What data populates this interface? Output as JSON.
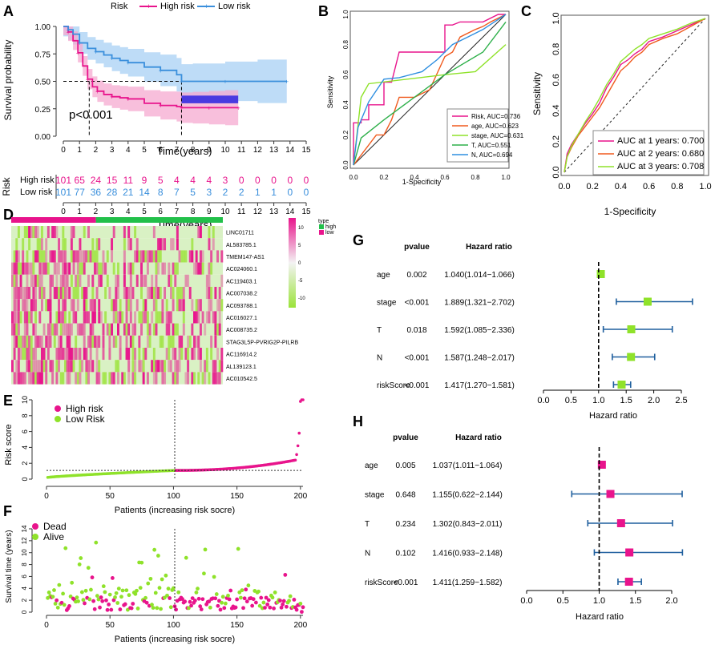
{
  "panel_labels": [
    "A",
    "B",
    "C",
    "D",
    "E",
    "F",
    "G",
    "H"
  ],
  "colors": {
    "high": "#e8148c",
    "low": "#3a8fdc",
    "high_fill": "#f6a9d0",
    "low_fill": "#a8d0f4",
    "green": "#8fe22a",
    "orange": "#f05a1e",
    "forest_bar": "#1f5f9e",
    "forest_green_box": "#8fe22a",
    "forest_pink_box": "#e8148c",
    "heat_pos": "#e8148c",
    "heat_neg": "#9be33a"
  },
  "chart_data": [
    {
      "id": "A",
      "type": "line",
      "title": "",
      "legend_title": "Risk",
      "legend": [
        "High risk",
        "Low risk"
      ],
      "xlabel": "Time(years)",
      "ylabel": "Survival probability",
      "xlim": [
        0,
        15
      ],
      "ylim": [
        0,
        1
      ],
      "xticks": [
        "0",
        "1",
        "2",
        "3",
        "4",
        "5",
        "6",
        "7",
        "8",
        "9",
        "10",
        "11",
        "12",
        "13",
        "14",
        "15"
      ],
      "yticks": [
        "0.00",
        "0.25",
        "0.50",
        "0.75",
        "1.00"
      ],
      "annotation": "p<0.001",
      "median_high": 1.6,
      "median_low": 7.3,
      "series": [
        {
          "name": "High risk",
          "x": [
            0,
            0.3,
            0.6,
            0.9,
            1.2,
            1.5,
            1.8,
            2.1,
            2.5,
            3,
            3.5,
            4,
            5,
            6,
            7,
            7.3,
            8,
            9,
            10,
            10.8
          ],
          "y": [
            1,
            0.95,
            0.87,
            0.76,
            0.64,
            0.52,
            0.45,
            0.41,
            0.38,
            0.36,
            0.35,
            0.34,
            0.3,
            0.28,
            0.27,
            0.26,
            0.26,
            0.26,
            0.26,
            0.26
          ]
        },
        {
          "name": "Low risk",
          "x": [
            0,
            0.3,
            0.6,
            1,
            1.5,
            2,
            2.5,
            3,
            3.5,
            4,
            5,
            6,
            7,
            7.3,
            8,
            10,
            12,
            13.8
          ],
          "y": [
            1,
            0.97,
            0.93,
            0.85,
            0.8,
            0.77,
            0.74,
            0.71,
            0.69,
            0.67,
            0.63,
            0.6,
            0.56,
            0.5,
            0.5,
            0.5,
            0.5,
            0.5
          ]
        }
      ],
      "risk_table": {
        "label": "Risk",
        "rows": [
          {
            "name": "High risk",
            "values": [
              "101",
              "65",
              "24",
              "15",
              "11",
              "9",
              "5",
              "4",
              "4",
              "4",
              "3",
              "0",
              "0",
              "0",
              "0",
              "0"
            ]
          },
          {
            "name": "Low risk",
            "values": [
              "101",
              "77",
              "36",
              "28",
              "21",
              "14",
              "8",
              "7",
              "5",
              "3",
              "2",
              "2",
              "1",
              "1",
              "0",
              "0"
            ]
          }
        ],
        "xticks": [
          "0",
          "1",
          "2",
          "3",
          "4",
          "5",
          "6",
          "7",
          "8",
          "9",
          "10",
          "11",
          "12",
          "13",
          "14",
          "15"
        ],
        "xlabel": "Time(years)"
      }
    },
    {
      "id": "B",
      "type": "line",
      "xlabel": "1-Specificity",
      "ylabel": "Sensitivity",
      "xlim": [
        0,
        1
      ],
      "ylim": [
        0,
        1
      ],
      "xticks": [
        "0.0",
        "0.2",
        "0.4",
        "0.6",
        "0.8",
        "1.0"
      ],
      "yticks": [
        "0.0",
        "0.2",
        "0.4",
        "0.6",
        "0.8",
        "1.0"
      ],
      "series": [
        {
          "name": "Risk, AUC=0.736",
          "color": "#e8148c",
          "x": [
            0,
            0,
            0.05,
            0.05,
            0.1,
            0.1,
            0.15,
            0.2,
            0.2,
            0.25,
            0.3,
            0.3,
            0.5,
            0.6,
            0.6,
            0.65,
            0.7,
            0.85,
            0.95,
            1
          ],
          "y": [
            0,
            0.28,
            0.28,
            0.3,
            0.3,
            0.4,
            0.4,
            0.4,
            0.55,
            0.55,
            0.75,
            0.75,
            0.75,
            0.75,
            0.93,
            0.93,
            0.95,
            0.95,
            1,
            1
          ]
        },
        {
          "name": "age, AUC=0.623",
          "color": "#f05a1e",
          "x": [
            0,
            0.15,
            0.2,
            0.25,
            0.3,
            0.4,
            0.5,
            0.6,
            0.65,
            0.7,
            0.8,
            0.85,
            0.9,
            1
          ],
          "y": [
            0,
            0.2,
            0.2,
            0.3,
            0.45,
            0.45,
            0.5,
            0.72,
            0.75,
            0.85,
            0.9,
            0.92,
            0.95,
            1
          ]
        },
        {
          "name": "stage, AUC=0.631",
          "color": "#8fe22a",
          "x": [
            0,
            0.05,
            0.1,
            0.6,
            0.8,
            1
          ],
          "y": [
            0,
            0.45,
            0.54,
            0.6,
            0.62,
            0.8
          ]
        },
        {
          "name": "T, AUC=0.551",
          "color": "#2eb04a",
          "x": [
            0,
            0.05,
            0.2,
            0.6,
            0.85,
            1
          ],
          "y": [
            0,
            0.18,
            0.3,
            0.6,
            0.75,
            0.95
          ]
        },
        {
          "name": "N, AUC=0.694",
          "color": "#2f8fe0",
          "x": [
            0,
            0.03,
            0.1,
            0.2,
            0.3,
            0.45,
            0.55,
            0.65,
            0.75,
            0.85,
            1
          ],
          "y": [
            0,
            0.25,
            0.42,
            0.57,
            0.58,
            0.62,
            0.7,
            0.8,
            0.85,
            0.9,
            1
          ]
        }
      ]
    },
    {
      "id": "C",
      "type": "line",
      "xlabel": "1-Specificity",
      "ylabel": "Sensitivity",
      "xlim": [
        0,
        1
      ],
      "ylim": [
        0,
        1
      ],
      "xticks": [
        "0.0",
        "0.2",
        "0.4",
        "0.6",
        "0.8",
        "1.0"
      ],
      "yticks": [
        "0.0",
        "0.2",
        "0.4",
        "0.6",
        "0.8",
        "1.0"
      ],
      "series": [
        {
          "name": "AUC at 1 years: 0.700",
          "color": "#e8148c",
          "x": [
            0,
            0.02,
            0.05,
            0.1,
            0.15,
            0.2,
            0.25,
            0.3,
            0.35,
            0.4,
            0.45,
            0.5,
            0.55,
            0.6,
            0.7,
            0.8,
            0.9,
            1
          ],
          "y": [
            0,
            0.12,
            0.18,
            0.25,
            0.32,
            0.38,
            0.45,
            0.55,
            0.62,
            0.7,
            0.73,
            0.77,
            0.8,
            0.85,
            0.88,
            0.92,
            0.96,
            1
          ]
        },
        {
          "name": "AUC at 2 years: 0.680",
          "color": "#f05a1e",
          "x": [
            0,
            0.02,
            0.05,
            0.1,
            0.15,
            0.2,
            0.25,
            0.3,
            0.35,
            0.4,
            0.45,
            0.5,
            0.55,
            0.6,
            0.7,
            0.8,
            0.9,
            1
          ],
          "y": [
            0,
            0.1,
            0.16,
            0.24,
            0.3,
            0.36,
            0.42,
            0.5,
            0.58,
            0.66,
            0.7,
            0.75,
            0.78,
            0.83,
            0.87,
            0.9,
            0.95,
            1
          ]
        },
        {
          "name": "AUC at 3 years: 0.708",
          "color": "#8fe22a",
          "x": [
            0,
            0.02,
            0.05,
            0.1,
            0.15,
            0.2,
            0.25,
            0.3,
            0.35,
            0.4,
            0.45,
            0.5,
            0.55,
            0.6,
            0.7,
            0.8,
            0.9,
            1
          ],
          "y": [
            0,
            0.1,
            0.17,
            0.25,
            0.33,
            0.4,
            0.48,
            0.57,
            0.64,
            0.72,
            0.76,
            0.8,
            0.83,
            0.87,
            0.9,
            0.93,
            0.97,
            1
          ]
        }
      ]
    },
    {
      "id": "D",
      "type": "heatmap",
      "genes": [
        "LINC01711",
        "AL583785.1",
        "TMEM147-AS1",
        "AC024060.1",
        "AC119403.1",
        "AC007038.2",
        "AC093788.1",
        "AC016027.1",
        "AC008735.2",
        "STAG3L5P-PVRIG2P-PILRB",
        "AC116914.2",
        "AL139123.1",
        "AC010542.5"
      ],
      "legend_title": "type",
      "legend": [
        "high",
        "low"
      ],
      "scale_ticks": [
        "10",
        "5",
        "0",
        "-5",
        "-10"
      ]
    },
    {
      "id": "E",
      "type": "scatter",
      "xlabel": "Patients (increasing risk socre)",
      "ylabel": "Risk score",
      "legend": [
        "High risk",
        "Low Risk"
      ],
      "xlim": [
        0,
        202
      ],
      "ylim": [
        0,
        10
      ],
      "xticks": [
        "0",
        "50",
        "100",
        "150",
        "200"
      ],
      "yticks": [
        "0",
        "2",
        "4",
        "6",
        "8",
        "10"
      ],
      "cutoff_x": 101,
      "cutoff_y": 1.1
    },
    {
      "id": "F",
      "type": "scatter",
      "xlabel": "Patients (increasing risk socre)",
      "ylabel": "Survival time (years)",
      "legend": [
        "Dead",
        "Alive"
      ],
      "xlim": [
        0,
        202
      ],
      "ylim": [
        0,
        14
      ],
      "xticks": [
        "0",
        "50",
        "100",
        "150",
        "200"
      ],
      "yticks": [
        "0",
        "2",
        "4",
        "6",
        "8",
        "10",
        "12",
        "14"
      ],
      "cutoff_x": 101
    },
    {
      "id": "G",
      "type": "table",
      "headers": [
        "pvalue",
        "Hazard ratio"
      ],
      "xlabel": "Hazard ratio",
      "xlim": [
        0,
        2.5
      ],
      "xticks": [
        "0.0",
        "0.5",
        "1.0",
        "1.5",
        "2.0",
        "2.5"
      ],
      "rows": [
        {
          "name": "age",
          "pvalue": "0.002",
          "hr_text": "1.040(1.014−1.066)",
          "hr": 1.04,
          "lo": 1.014,
          "hi": 1.066
        },
        {
          "name": "stage",
          "pvalue": "<0.001",
          "hr_text": "1.889(1.321−2.702)",
          "hr": 1.889,
          "lo": 1.321,
          "hi": 2.702
        },
        {
          "name": "T",
          "pvalue": "0.018",
          "hr_text": "1.592(1.085−2.336)",
          "hr": 1.592,
          "lo": 1.085,
          "hi": 2.336
        },
        {
          "name": "N",
          "pvalue": "<0.001",
          "hr_text": "1.587(1.248−2.017)",
          "hr": 1.587,
          "lo": 1.248,
          "hi": 2.017
        },
        {
          "name": "riskScore",
          "pvalue": "<0.001",
          "hr_text": "1.417(1.270−1.581)",
          "hr": 1.417,
          "lo": 1.27,
          "hi": 1.581
        }
      ]
    },
    {
      "id": "H",
      "type": "table",
      "headers": [
        "pvalue",
        "Hazard ratio"
      ],
      "xlabel": "Hazard ratio",
      "xlim": [
        0,
        2
      ],
      "xticks": [
        "0.0",
        "0.5",
        "1.0",
        "1.5",
        "2.0"
      ],
      "rows": [
        {
          "name": "age",
          "pvalue": "0.005",
          "hr_text": "1.037(1.011−1.064)",
          "hr": 1.037,
          "lo": 1.011,
          "hi": 1.064
        },
        {
          "name": "stage",
          "pvalue": "0.648",
          "hr_text": "1.155(0.622−2.144)",
          "hr": 1.155,
          "lo": 0.622,
          "hi": 2.144
        },
        {
          "name": "T",
          "pvalue": "0.234",
          "hr_text": "1.302(0.843−2.011)",
          "hr": 1.302,
          "lo": 0.843,
          "hi": 2.011
        },
        {
          "name": "N",
          "pvalue": "0.102",
          "hr_text": "1.416(0.933−2.148)",
          "hr": 1.416,
          "lo": 0.933,
          "hi": 2.148
        },
        {
          "name": "riskScore",
          "pvalue": "<0.001",
          "hr_text": "1.411(1.259−1.582)",
          "hr": 1.411,
          "lo": 1.259,
          "hi": 1.582
        }
      ]
    }
  ]
}
